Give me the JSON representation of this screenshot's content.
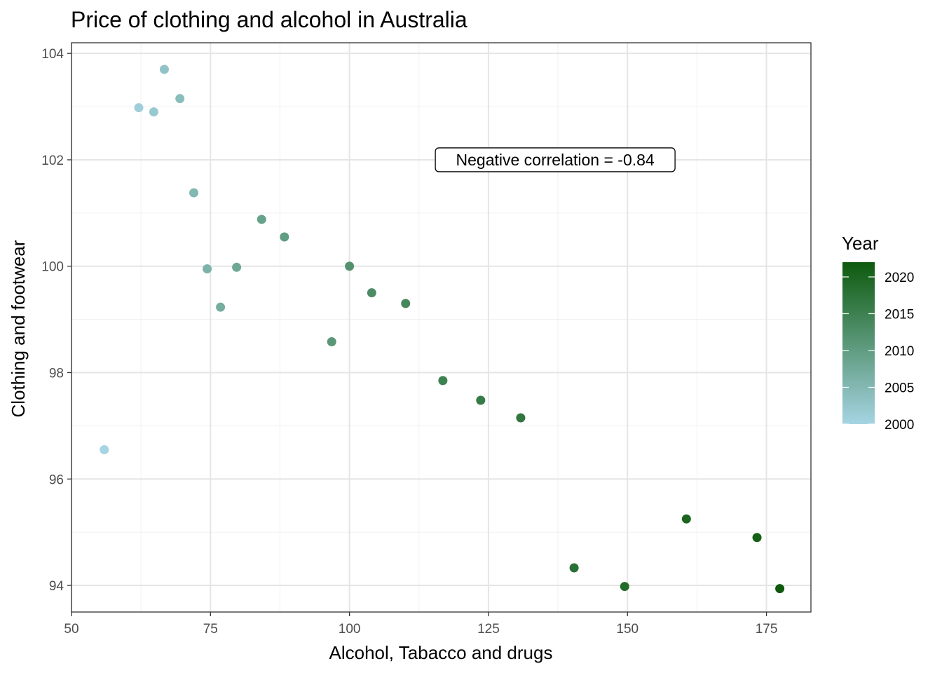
{
  "chart_data": {
    "type": "scatter",
    "title": "Price of clothing and alcohol in Australia",
    "xlabel": "Alcohol, Tabacco and drugs",
    "ylabel": "Clothing and footwear",
    "xlim": [
      50,
      183
    ],
    "ylim": [
      93.5,
      104.2
    ],
    "x_ticks": [
      50,
      75,
      100,
      125,
      150,
      175
    ],
    "y_ticks": [
      94,
      96,
      98,
      100,
      102,
      104
    ],
    "grid": true,
    "legend": {
      "title": "Year",
      "placement": "right",
      "range": [
        2000,
        2022
      ],
      "ticks": [
        2000,
        2005,
        2010,
        2015,
        2020
      ],
      "color_low": "#a6d4e3",
      "color_high": "#0d5a0d"
    },
    "annotation": {
      "text": "Negative correlation = -0.84",
      "x": 137,
      "y": 102
    },
    "points": [
      {
        "x": 55.9,
        "y": 96.55,
        "year": 2000
      },
      {
        "x": 62.1,
        "y": 102.98,
        "year": 2001
      },
      {
        "x": 64.8,
        "y": 102.9,
        "year": 2002
      },
      {
        "x": 66.7,
        "y": 103.7,
        "year": 2003
      },
      {
        "x": 69.5,
        "y": 103.15,
        "year": 2004
      },
      {
        "x": 72.0,
        "y": 101.38,
        "year": 2005
      },
      {
        "x": 74.4,
        "y": 99.95,
        "year": 2006
      },
      {
        "x": 76.8,
        "y": 99.23,
        "year": 2007
      },
      {
        "x": 79.7,
        "y": 99.98,
        "year": 2008
      },
      {
        "x": 84.2,
        "y": 100.88,
        "year": 2009
      },
      {
        "x": 88.3,
        "y": 100.55,
        "year": 2010
      },
      {
        "x": 96.8,
        "y": 98.58,
        "year": 2011
      },
      {
        "x": 100.0,
        "y": 100.0,
        "year": 2012
      },
      {
        "x": 104.0,
        "y": 99.5,
        "year": 2013
      },
      {
        "x": 110.1,
        "y": 99.3,
        "year": 2014
      },
      {
        "x": 116.8,
        "y": 97.85,
        "year": 2015
      },
      {
        "x": 123.6,
        "y": 97.48,
        "year": 2016
      },
      {
        "x": 130.8,
        "y": 97.15,
        "year": 2017
      },
      {
        "x": 140.4,
        "y": 94.33,
        "year": 2018
      },
      {
        "x": 149.5,
        "y": 93.98,
        "year": 2019
      },
      {
        "x": 160.6,
        "y": 95.25,
        "year": 2020
      },
      {
        "x": 173.3,
        "y": 94.9,
        "year": 2021
      },
      {
        "x": 177.4,
        "y": 93.94,
        "year": 2022
      }
    ]
  }
}
